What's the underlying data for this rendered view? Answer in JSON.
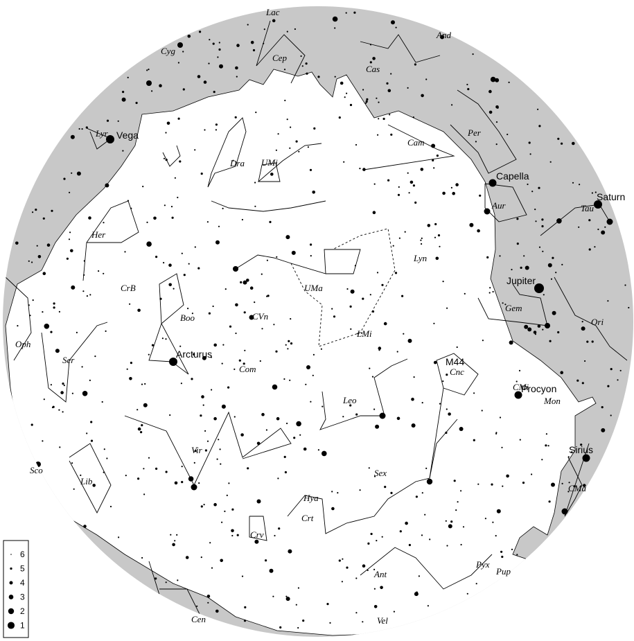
{
  "constellations": [
    "Lac",
    "And",
    "Cyg",
    "Cep",
    "Cas",
    "Lyr",
    "Per",
    "Cam",
    "Dra",
    "UMi",
    "Aur",
    "Tau",
    "Her",
    "Lyn",
    "UMa",
    "CrB",
    "Boo",
    "CVn",
    "Gem",
    "Ori",
    "LMi",
    "Oph",
    "Ser",
    "Cnc",
    "Com",
    "CMi",
    "Mon",
    "Leo",
    "Vir",
    "Sco",
    "Lib",
    "Sex",
    "Hya",
    "CMa",
    "Crt",
    "Crv",
    "Pup",
    "Pyx",
    "Ant",
    "Cen",
    "Vel"
  ],
  "named_objects": [
    "Vega",
    "Capella",
    "Saturn",
    "Jupiter",
    "Arcturus",
    "M44",
    "Procyon",
    "Sirius"
  ],
  "legend": {
    "magnitudes": [
      6,
      5,
      4,
      3,
      2,
      1
    ]
  }
}
